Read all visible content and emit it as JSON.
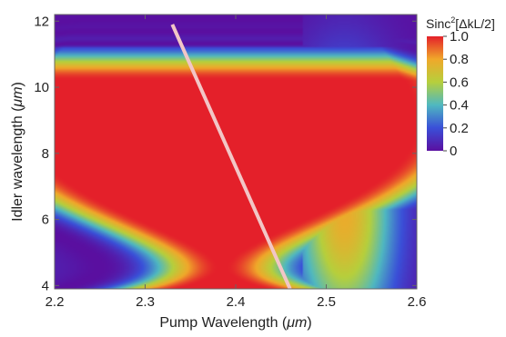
{
  "chart_data": {
    "type": "heatmap",
    "title": "",
    "xlabel": "Pump Wavelength (",
    "xlabel_unit": "μm",
    "xlabel_close": ")",
    "ylabel": "Idler wavelength (",
    "ylabel_unit": "μm",
    "ylabel_close": ")",
    "xlim": [
      2.2,
      2.6
    ],
    "ylim": [
      3.9,
      12.2
    ],
    "x_ticks": [
      2.2,
      2.3,
      2.4,
      2.5,
      2.6
    ],
    "x_tick_labels": [
      "2.2",
      "2.3",
      "2.4",
      "2.5",
      "2.6"
    ],
    "y_ticks": [
      4,
      6,
      8,
      10,
      12
    ],
    "y_tick_labels": [
      "4",
      "6",
      "8",
      "10",
      "12"
    ],
    "colorbar": {
      "title_prefix": "Sinc",
      "title_sup": "2",
      "title_suffix": "[ΔkL/2]",
      "range": [
        0,
        1
      ],
      "ticks": [
        0,
        0.2,
        0.4,
        0.6,
        0.8,
        1.0
      ],
      "tick_labels": [
        "0",
        "0.2",
        "0.4",
        "0.6",
        "0.8",
        "1.0"
      ],
      "colormap": "rainbow",
      "colors": [
        "#5a0fa0",
        "#3a4fd8",
        "#4fb8c0",
        "#b6cf3c",
        "#f0a82a",
        "#e4202a"
      ]
    },
    "overlay_line": {
      "color": "#f2c6c6",
      "points": [
        [
          2.33,
          11.9
        ],
        [
          2.46,
          3.9
        ]
      ]
    },
    "gridlines": false
  }
}
